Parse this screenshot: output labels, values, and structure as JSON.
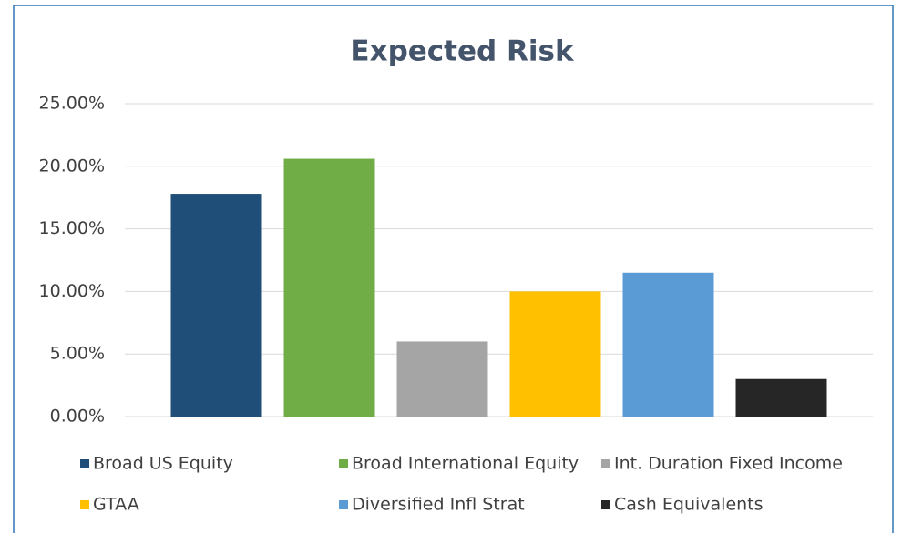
{
  "chart_data": {
    "type": "bar",
    "title": "Expected Risk",
    "categories": [
      null
    ],
    "series": [
      {
        "name": "Broad US Equity",
        "color": "#1f4e79",
        "values": [
          17.8
        ]
      },
      {
        "name": "Broad International Equity",
        "color": "#70ad47",
        "values": [
          20.6
        ]
      },
      {
        "name": "Int. Duration Fixed Income",
        "color": "#a5a5a5",
        "values": [
          6.0
        ]
      },
      {
        "name": "GTAA",
        "color": "#ffc000",
        "values": [
          10.0
        ]
      },
      {
        "name": "Diversified Infl Strat",
        "color": "#5b9bd5",
        "values": [
          11.5
        ]
      },
      {
        "name": "Cash Equivalents",
        "color": "#262626",
        "values": [
          3.0
        ]
      }
    ],
    "ylim": [
      0,
      25
    ],
    "yticks": [
      {
        "value": 0,
        "label": "0.00%"
      },
      {
        "value": 5,
        "label": "5.00%"
      },
      {
        "value": 10,
        "label": "10.00%"
      },
      {
        "value": 15,
        "label": "15.00%"
      },
      {
        "value": 20,
        "label": "20.00%"
      },
      {
        "value": 25,
        "label": "25.00%"
      }
    ],
    "grid": true,
    "legend": "bottom"
  }
}
